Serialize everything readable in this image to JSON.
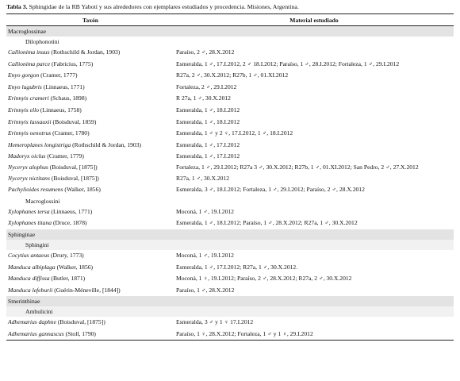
{
  "caption": {
    "label": "Tabla 3.",
    "text": " Sphingidae de la RB Yabotí y sus alrededores con ejemplares estudiados y procedencia. Misiones, Argentina."
  },
  "headers": {
    "taxon": "Taxón",
    "material": "Material estudiado"
  },
  "sections": [
    {
      "subfamily": "Macroglossinae",
      "tribes": [
        {
          "name": "Dilophonotini",
          "shaded": false,
          "rows": [
            {
              "genus": "Callionima inuus",
              "author": " (Rothschild & Jordan, 1903)",
              "material": "Paraíso, 2 ♂, 28.X.2012"
            },
            {
              "genus": "Callionima parce",
              "author": " (Fabricius, 1775)",
              "material": "Esmeralda, 1 ♂, 17.I.2012, 2 ♂ 18.I.2012; Paraíso, 1 ♂, 28.I.2012; Fortaleza, 1 ♂, 29.I.2012"
            },
            {
              "genus": "Enyo gorgon",
              "author": " (Cramer, 1777)",
              "material": "R27a, 2 ♂, 30.X.2012; R27b, 1 ♂, 01.XI.2012"
            },
            {
              "genus": "Enyo lugubris",
              "author": " (Linnaeus, 1771)",
              "material": "Fortaleza, 2 ♂, 29.I.2012"
            },
            {
              "genus": "Erinnyis crameri",
              "author": " (Schaus, 1898)",
              "material": "R 27a, 1 ♂, 30.X.2012"
            },
            {
              "genus": "Erinnyis ello",
              "author": " (Linnaeus, 1758)",
              "material": "Esmeralda, 1 ♂, 18.I.2012"
            },
            {
              "genus": "Erinnyis lassauxii",
              "author": " (Boisduval, 1859)",
              "material": "Esmeralda, 1 ♂, 18.I.2012"
            },
            {
              "genus": "Erinnyis oenotrus",
              "author": " (Cramer, 1780)",
              "material": "Esmeralda, 1 ♂ y 2 ♀, 17.I.2012, 1 ♂, 18.I.2012"
            },
            {
              "genus": "Hemeroplanes longistriga",
              "author": " (Rothschild & Jordan, 1903)",
              "material": "Esmeralda, 1 ♂, 17.I.2012"
            },
            {
              "genus": "Madoryx oiclus",
              "author": " (Cramer, 1779)",
              "material": "Esmeralda, 1 ♂, 17.I.2012"
            },
            {
              "genus": "Nyceryx alophus",
              "author": " (Boisduval, [1875])",
              "material": "Fortaleza, 1 ♂, 29.I.2012; R27a 3 ♂, 30.X.2012; R27b, 1 ♂, 01.XI.2012; San Pedro, 2 ♂, 27.X.2012",
              "wrap": true
            },
            {
              "genus": "Nyceryx nictitans",
              "author": " (Boisduval, [1875])",
              "material": "R27a, 1 ♂, 30.X.2012"
            },
            {
              "genus": "Pachylioides resumens",
              "author": " (Walker, 1856)",
              "material": "Esmeralda, 3 ♂, 18.I.2012; Fortaleza, 1 ♂, 29.I.2012; Paraíso, 2 ♂, 28.X.2012"
            }
          ]
        },
        {
          "name": "Macroglossini",
          "shaded": false,
          "rows": [
            {
              "genus": "Xylophanes tersa",
              "author": " (Linnaeus, 1771)",
              "material": "Moconá, 1 ♂, 19.I.2012"
            },
            {
              "genus": "Xylophanes titana",
              "author": " (Druce, 1878)",
              "material": "Esmeralda, 1 ♂, 18.I.2012; Paraíso, 1 ♂, 28.X.2012; R27a, 1 ♂, 30.X.2012"
            }
          ]
        }
      ]
    },
    {
      "subfamily": "Sphinginae",
      "tribes": [
        {
          "name": "Sphingini",
          "shaded": true,
          "rows": [
            {
              "genus": "Cocytius antaeus",
              "author": " (Drury, 1773)",
              "material": "Moconá, 1 ♂, 19.I.2012"
            },
            {
              "genus": "Manduca albiplaga",
              "author": " (Walker, 1856)",
              "material": "Esmeralda, 1 ♂, 17.I.2012; R27a, 1 ♂, 30.X.2012."
            },
            {
              "genus": "Manduca diffissa",
              "author": " (Butler, 1871)",
              "material": "Moconá, 1 ♀, 19.I.2012; Paraíso, 2 ♂, 28.X.2012; R27a, 2 ♂, 30.X.2012"
            },
            {
              "genus": "Manduca lefeburii",
              "author": " (Guérin-Méneville, [1844])",
              "material": "Paraíso, 1 ♂, 28.X.2012"
            }
          ]
        }
      ]
    },
    {
      "subfamily": "Smerinthinae",
      "tribes": [
        {
          "name": "Ambulicini",
          "shaded": true,
          "rows": [
            {
              "genus": "Adhemarius daphne",
              "author": " (Boisduval, [1875])",
              "material": "Esmeralda, 3 ♂ y 1 ♀ 17.I.2012"
            },
            {
              "genus": "Adhemarius gannascus",
              "author": " (Stoll, 1790)",
              "material": "Paraíso, 1 ♀, 28.X.2012; Fortaleza, 1 ♂ y 1 ♀, 29.I.2012"
            }
          ]
        }
      ]
    }
  ]
}
